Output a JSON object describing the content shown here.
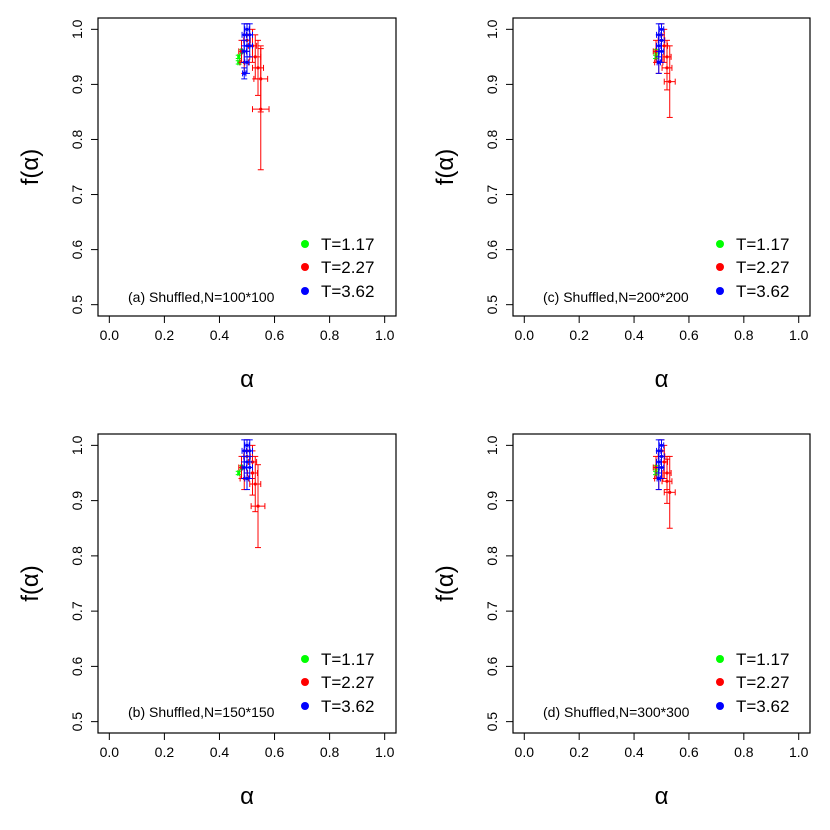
{
  "chart_data": [
    {
      "type": "scatter",
      "panel_label": "(a) Shuffled,N=100*100",
      "xlabel": "α",
      "ylabel": "f(α)",
      "xlim": [
        0,
        1
      ],
      "ylim": [
        0.5,
        1
      ],
      "xticks": [
        "0.0",
        "0.2",
        "0.4",
        "0.6",
        "0.8",
        "1.0"
      ],
      "yticks": [
        "0.5",
        "0.6",
        "0.7",
        "0.8",
        "0.9",
        "1.0"
      ],
      "legend": [
        "T=1.17",
        "T=2.27",
        "T=3.62"
      ],
      "series": [
        {
          "name": "T=1.17",
          "color": "#00ff00",
          "points": [
            [
              0.47,
              0.95,
              0.003,
              0.003
            ],
            [
              0.48,
              0.96,
              0.003,
              0.003
            ],
            [
              0.47,
              0.94,
              0.003,
              0.003
            ]
          ]
        },
        {
          "name": "T=2.27",
          "color": "#ff0000",
          "points": [
            [
              0.48,
              0.96,
              0.01,
              0.02
            ],
            [
              0.5,
              0.98,
              0.012,
              0.02
            ],
            [
              0.52,
              0.97,
              0.015,
              0.03
            ],
            [
              0.53,
              0.95,
              0.02,
              0.04
            ],
            [
              0.54,
              0.93,
              0.02,
              0.05
            ],
            [
              0.55,
              0.91,
              0.025,
              0.06
            ],
            [
              0.55,
              0.855,
              0.03,
              0.11
            ],
            [
              0.5,
              0.99,
              0.01,
              0.02
            ],
            [
              0.49,
              0.94,
              0.015,
              0.02
            ]
          ]
        },
        {
          "name": "T=3.62",
          "color": "#0000ff",
          "points": [
            [
              0.49,
              0.99,
              0.008,
              0.02
            ],
            [
              0.5,
              1.0,
              0.008,
              0.01
            ],
            [
              0.51,
              0.99,
              0.01,
              0.02
            ],
            [
              0.5,
              0.97,
              0.01,
              0.02
            ],
            [
              0.49,
              0.96,
              0.008,
              0.02
            ],
            [
              0.51,
              0.97,
              0.01,
              0.02
            ],
            [
              0.5,
              0.94,
              0.008,
              0.02
            ],
            [
              0.49,
              0.92,
              0.006,
              0.01
            ]
          ]
        }
      ]
    },
    {
      "type": "scatter",
      "panel_label": "(c) Shuffled,N=200*200",
      "xlabel": "α",
      "ylabel": "f(α)",
      "xlim": [
        0,
        1
      ],
      "ylim": [
        0.5,
        1
      ],
      "xticks": [
        "0.0",
        "0.2",
        "0.4",
        "0.6",
        "0.8",
        "1.0"
      ],
      "yticks": [
        "0.5",
        "0.6",
        "0.7",
        "0.8",
        "0.9",
        "1.0"
      ],
      "legend": [
        "T=1.17",
        "T=2.27",
        "T=3.62"
      ],
      "series": [
        {
          "name": "T=1.17",
          "color": "#00ff00",
          "points": [
            [
              0.48,
              0.95,
              0.003,
              0.003
            ],
            [
              0.48,
              0.96,
              0.003,
              0.003
            ]
          ]
        },
        {
          "name": "T=2.27",
          "color": "#ff0000",
          "points": [
            [
              0.48,
              0.96,
              0.01,
              0.02
            ],
            [
              0.5,
              0.98,
              0.012,
              0.02
            ],
            [
              0.51,
              0.97,
              0.012,
              0.03
            ],
            [
              0.52,
              0.95,
              0.015,
              0.03
            ],
            [
              0.52,
              0.93,
              0.018,
              0.04
            ],
            [
              0.53,
              0.905,
              0.02,
              0.065
            ],
            [
              0.5,
              0.99,
              0.01,
              0.02
            ],
            [
              0.49,
              0.94,
              0.015,
              0.02
            ]
          ]
        },
        {
          "name": "T=3.62",
          "color": "#0000ff",
          "points": [
            [
              0.49,
              0.99,
              0.008,
              0.02
            ],
            [
              0.5,
              1.0,
              0.008,
              0.01
            ],
            [
              0.5,
              0.98,
              0.01,
              0.02
            ],
            [
              0.49,
              0.97,
              0.008,
              0.02
            ],
            [
              0.5,
              0.96,
              0.008,
              0.02
            ],
            [
              0.49,
              0.94,
              0.006,
              0.02
            ]
          ]
        }
      ]
    },
    {
      "type": "scatter",
      "panel_label": "(b) Shuffled,N=150*150",
      "xlabel": "α",
      "ylabel": "f(α)",
      "xlim": [
        0,
        1
      ],
      "ylim": [
        0.5,
        1
      ],
      "xticks": [
        "0.0",
        "0.2",
        "0.4",
        "0.6",
        "0.8",
        "1.0"
      ],
      "yticks": [
        "0.5",
        "0.6",
        "0.7",
        "0.8",
        "0.9",
        "1.0"
      ],
      "legend": [
        "T=1.17",
        "T=2.27",
        "T=3.62"
      ],
      "series": [
        {
          "name": "T=1.17",
          "color": "#00ff00",
          "points": [
            [
              0.47,
              0.95,
              0.003,
              0.003
            ],
            [
              0.48,
              0.96,
              0.003,
              0.003
            ]
          ]
        },
        {
          "name": "T=2.27",
          "color": "#ff0000",
          "points": [
            [
              0.48,
              0.96,
              0.01,
              0.02
            ],
            [
              0.5,
              0.98,
              0.012,
              0.02
            ],
            [
              0.52,
              0.97,
              0.015,
              0.03
            ],
            [
              0.52,
              0.95,
              0.018,
              0.04
            ],
            [
              0.53,
              0.93,
              0.02,
              0.05
            ],
            [
              0.54,
              0.89,
              0.025,
              0.075
            ],
            [
              0.5,
              0.99,
              0.01,
              0.02
            ],
            [
              0.49,
              0.94,
              0.015,
              0.02
            ]
          ]
        },
        {
          "name": "T=3.62",
          "color": "#0000ff",
          "points": [
            [
              0.49,
              0.99,
              0.008,
              0.02
            ],
            [
              0.5,
              1.0,
              0.008,
              0.01
            ],
            [
              0.51,
              0.99,
              0.01,
              0.02
            ],
            [
              0.5,
              0.97,
              0.01,
              0.02
            ],
            [
              0.49,
              0.96,
              0.008,
              0.02
            ],
            [
              0.51,
              0.96,
              0.01,
              0.02
            ],
            [
              0.5,
              0.94,
              0.008,
              0.02
            ]
          ]
        }
      ]
    },
    {
      "type": "scatter",
      "panel_label": "(d) Shuffled,N=300*300",
      "xlabel": "α",
      "ylabel": "f(α)",
      "xlim": [
        0,
        1
      ],
      "ylim": [
        0.5,
        1
      ],
      "xticks": [
        "0.0",
        "0.2",
        "0.4",
        "0.6",
        "0.8",
        "1.0"
      ],
      "yticks": [
        "0.5",
        "0.6",
        "0.7",
        "0.8",
        "0.9",
        "1.0"
      ],
      "legend": [
        "T=1.17",
        "T=2.27",
        "T=3.62"
      ],
      "series": [
        {
          "name": "T=1.17",
          "color": "#00ff00",
          "points": [
            [
              0.48,
              0.95,
              0.003,
              0.003
            ],
            [
              0.48,
              0.96,
              0.003,
              0.003
            ]
          ]
        },
        {
          "name": "T=2.27",
          "color": "#ff0000",
          "points": [
            [
              0.48,
              0.96,
              0.01,
              0.02
            ],
            [
              0.5,
              0.98,
              0.012,
              0.02
            ],
            [
              0.51,
              0.97,
              0.012,
              0.03
            ],
            [
              0.52,
              0.95,
              0.015,
              0.03
            ],
            [
              0.52,
              0.935,
              0.018,
              0.04
            ],
            [
              0.53,
              0.915,
              0.02,
              0.065
            ],
            [
              0.5,
              0.99,
              0.01,
              0.02
            ],
            [
              0.49,
              0.94,
              0.015,
              0.02
            ]
          ]
        },
        {
          "name": "T=3.62",
          "color": "#0000ff",
          "points": [
            [
              0.49,
              0.99,
              0.008,
              0.02
            ],
            [
              0.5,
              1.0,
              0.008,
              0.01
            ],
            [
              0.5,
              0.98,
              0.01,
              0.02
            ],
            [
              0.49,
              0.97,
              0.008,
              0.02
            ],
            [
              0.5,
              0.96,
              0.008,
              0.02
            ],
            [
              0.49,
              0.94,
              0.006,
              0.02
            ]
          ]
        }
      ]
    }
  ]
}
